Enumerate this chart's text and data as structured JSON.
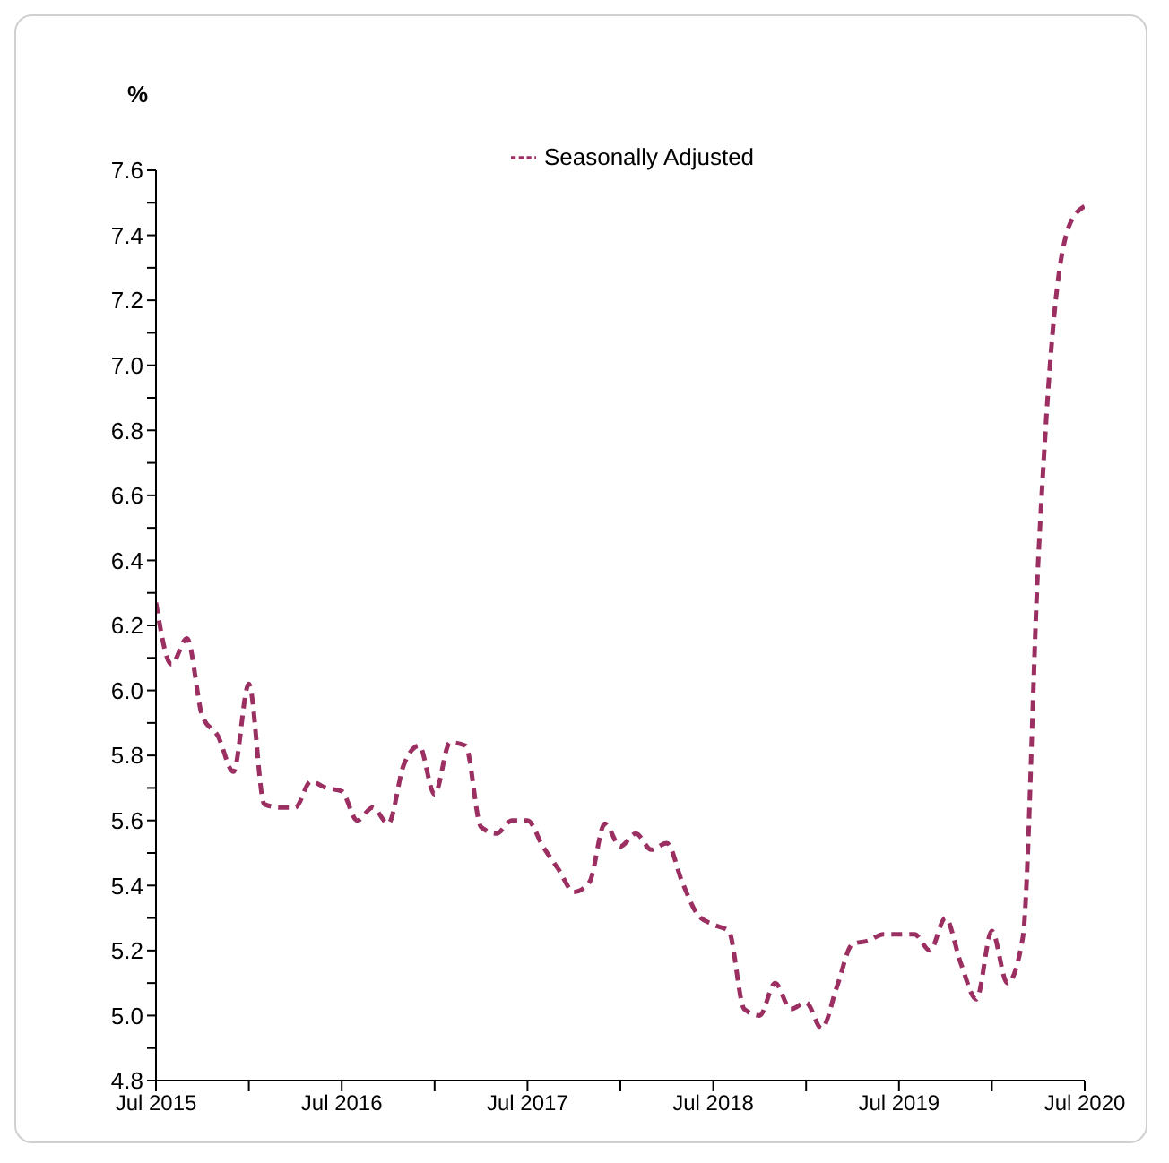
{
  "chart_data": {
    "type": "line",
    "ylabel": "%",
    "x": [
      "2015-07",
      "2015-08",
      "2015-09",
      "2015-10",
      "2015-11",
      "2015-12",
      "2016-01",
      "2016-02",
      "2016-03",
      "2016-04",
      "2016-05",
      "2016-06",
      "2016-07",
      "2016-08",
      "2016-09",
      "2016-10",
      "2016-11",
      "2016-12",
      "2017-01",
      "2017-02",
      "2017-03",
      "2017-04",
      "2017-05",
      "2017-06",
      "2017-07",
      "2017-08",
      "2017-09",
      "2017-10",
      "2017-11",
      "2017-12",
      "2018-01",
      "2018-02",
      "2018-03",
      "2018-04",
      "2018-05",
      "2018-06",
      "2018-07",
      "2018-08",
      "2018-09",
      "2018-10",
      "2018-11",
      "2018-12",
      "2019-01",
      "2019-02",
      "2019-03",
      "2019-04",
      "2019-05",
      "2019-06",
      "2019-07",
      "2019-08",
      "2019-09",
      "2019-10",
      "2019-11",
      "2019-12",
      "2020-01",
      "2020-02",
      "2020-03",
      "2020-04",
      "2020-05",
      "2020-06",
      "2020-07"
    ],
    "series": [
      {
        "name": "Seasonally Adjusted",
        "color": "#9b2f62",
        "values": [
          6.27,
          6.08,
          6.16,
          5.92,
          5.86,
          5.75,
          6.02,
          5.65,
          5.64,
          5.64,
          5.72,
          5.7,
          5.69,
          5.6,
          5.64,
          5.59,
          5.77,
          5.83,
          5.68,
          5.84,
          5.83,
          5.58,
          5.56,
          5.6,
          5.6,
          5.52,
          5.45,
          5.38,
          5.41,
          5.59,
          5.52,
          5.56,
          5.51,
          5.53,
          5.41,
          5.31,
          5.28,
          5.26,
          5.02,
          5.0,
          5.1,
          5.02,
          5.04,
          4.96,
          5.09,
          5.22,
          5.23,
          5.25,
          5.25,
          5.25,
          5.2,
          5.3,
          5.16,
          5.05,
          5.26,
          5.1,
          5.24,
          6.4,
          7.14,
          7.43,
          7.49
        ]
      }
    ],
    "xlim": [
      "2015-07",
      "2020-07"
    ],
    "xticks": [
      {
        "value": "2015-07",
        "label": "Jul 2015"
      },
      {
        "value": "2016-01",
        "label": null
      },
      {
        "value": "2016-07",
        "label": "Jul 2016"
      },
      {
        "value": "2017-01",
        "label": null
      },
      {
        "value": "2017-07",
        "label": "Jul 2017"
      },
      {
        "value": "2018-01",
        "label": null
      },
      {
        "value": "2018-07",
        "label": "Jul 2018"
      },
      {
        "value": "2019-01",
        "label": null
      },
      {
        "value": "2019-07",
        "label": "Jul 2019"
      },
      {
        "value": "2020-01",
        "label": null
      },
      {
        "value": "2020-07",
        "label": "Jul 2020"
      }
    ],
    "ylim": [
      4.8,
      7.6
    ],
    "yticks": [
      {
        "value": 4.8,
        "label": "4.8"
      },
      {
        "value": 4.9,
        "label": null
      },
      {
        "value": 5.0,
        "label": "5.0"
      },
      {
        "value": 5.1,
        "label": null
      },
      {
        "value": 5.2,
        "label": "5.2"
      },
      {
        "value": 5.3,
        "label": null
      },
      {
        "value": 5.4,
        "label": "5.4"
      },
      {
        "value": 5.5,
        "label": null
      },
      {
        "value": 5.6,
        "label": "5.6"
      },
      {
        "value": 5.7,
        "label": null
      },
      {
        "value": 5.8,
        "label": "5.8"
      },
      {
        "value": 5.9,
        "label": null
      },
      {
        "value": 6.0,
        "label": "6.0"
      },
      {
        "value": 6.1,
        "label": null
      },
      {
        "value": 6.2,
        "label": "6.2"
      },
      {
        "value": 6.3,
        "label": null
      },
      {
        "value": 6.4,
        "label": "6.4"
      },
      {
        "value": 6.5,
        "label": null
      },
      {
        "value": 6.6,
        "label": "6.6"
      },
      {
        "value": 6.7,
        "label": null
      },
      {
        "value": 6.8,
        "label": "6.8"
      },
      {
        "value": 6.9,
        "label": null
      },
      {
        "value": 7.0,
        "label": "7.0"
      },
      {
        "value": 7.1,
        "label": null
      },
      {
        "value": 7.2,
        "label": "7.2"
      },
      {
        "value": 7.3,
        "label": null
      },
      {
        "value": 7.4,
        "label": "7.4"
      },
      {
        "value": 7.5,
        "label": null
      },
      {
        "value": 7.6,
        "label": "7.6"
      }
    ],
    "grid": false,
    "legend": "top",
    "marker": "none",
    "line_style": "dashed"
  }
}
